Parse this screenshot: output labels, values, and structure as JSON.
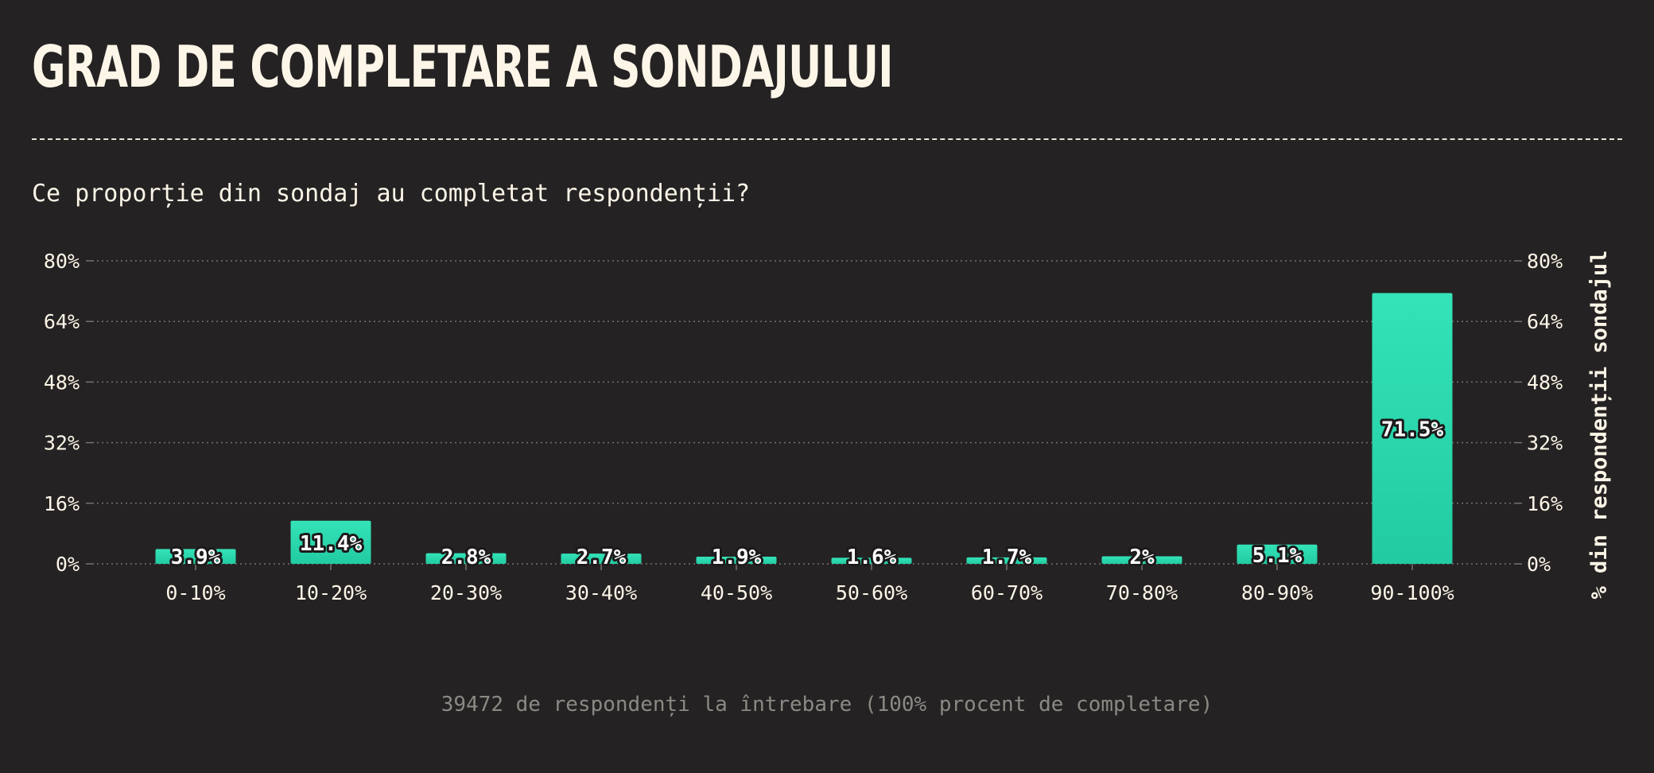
{
  "header": {
    "title": "GRAD DE COMPLETARE A SONDAJULUI",
    "subtitle": "Ce proporție din sondaj au completat respondenții?"
  },
  "footer": {
    "note": "39472 de respondenți la întrebare (100% procent de completare)"
  },
  "colors": {
    "background": "#252223",
    "bar_top": "#34e3b8",
    "bar_bottom": "#22cba1",
    "text": "#fdf6e8",
    "muted": "#8c8883",
    "grid": "#76726d"
  },
  "chart_data": {
    "type": "bar",
    "title": "GRAD DE COMPLETARE A SONDAJULUI",
    "subtitle": "Ce proporție din sondaj au completat respondenții?",
    "xlabel": "",
    "ylabel": "% din respondenții sondajul",
    "categories": [
      "0-10%",
      "10-20%",
      "20-30%",
      "30-40%",
      "40-50%",
      "50-60%",
      "60-70%",
      "70-80%",
      "80-90%",
      "90-100%"
    ],
    "values": [
      3.9,
      11.4,
      2.8,
      2.7,
      1.9,
      1.6,
      1.7,
      2,
      5.1,
      71.5
    ],
    "value_labels": [
      "3.9%",
      "11.4%",
      "2.8%",
      "2.7%",
      "1.9%",
      "1.6%",
      "1.7%",
      "2%",
      "5.1%",
      "71.5%"
    ],
    "ylim": [
      0,
      80
    ],
    "yticks": [
      0,
      16,
      32,
      48,
      64,
      80
    ],
    "ytick_labels": [
      "0%",
      "16%",
      "32%",
      "48%",
      "64%",
      "80%"
    ],
    "grid": true,
    "ytick_side": "both"
  }
}
